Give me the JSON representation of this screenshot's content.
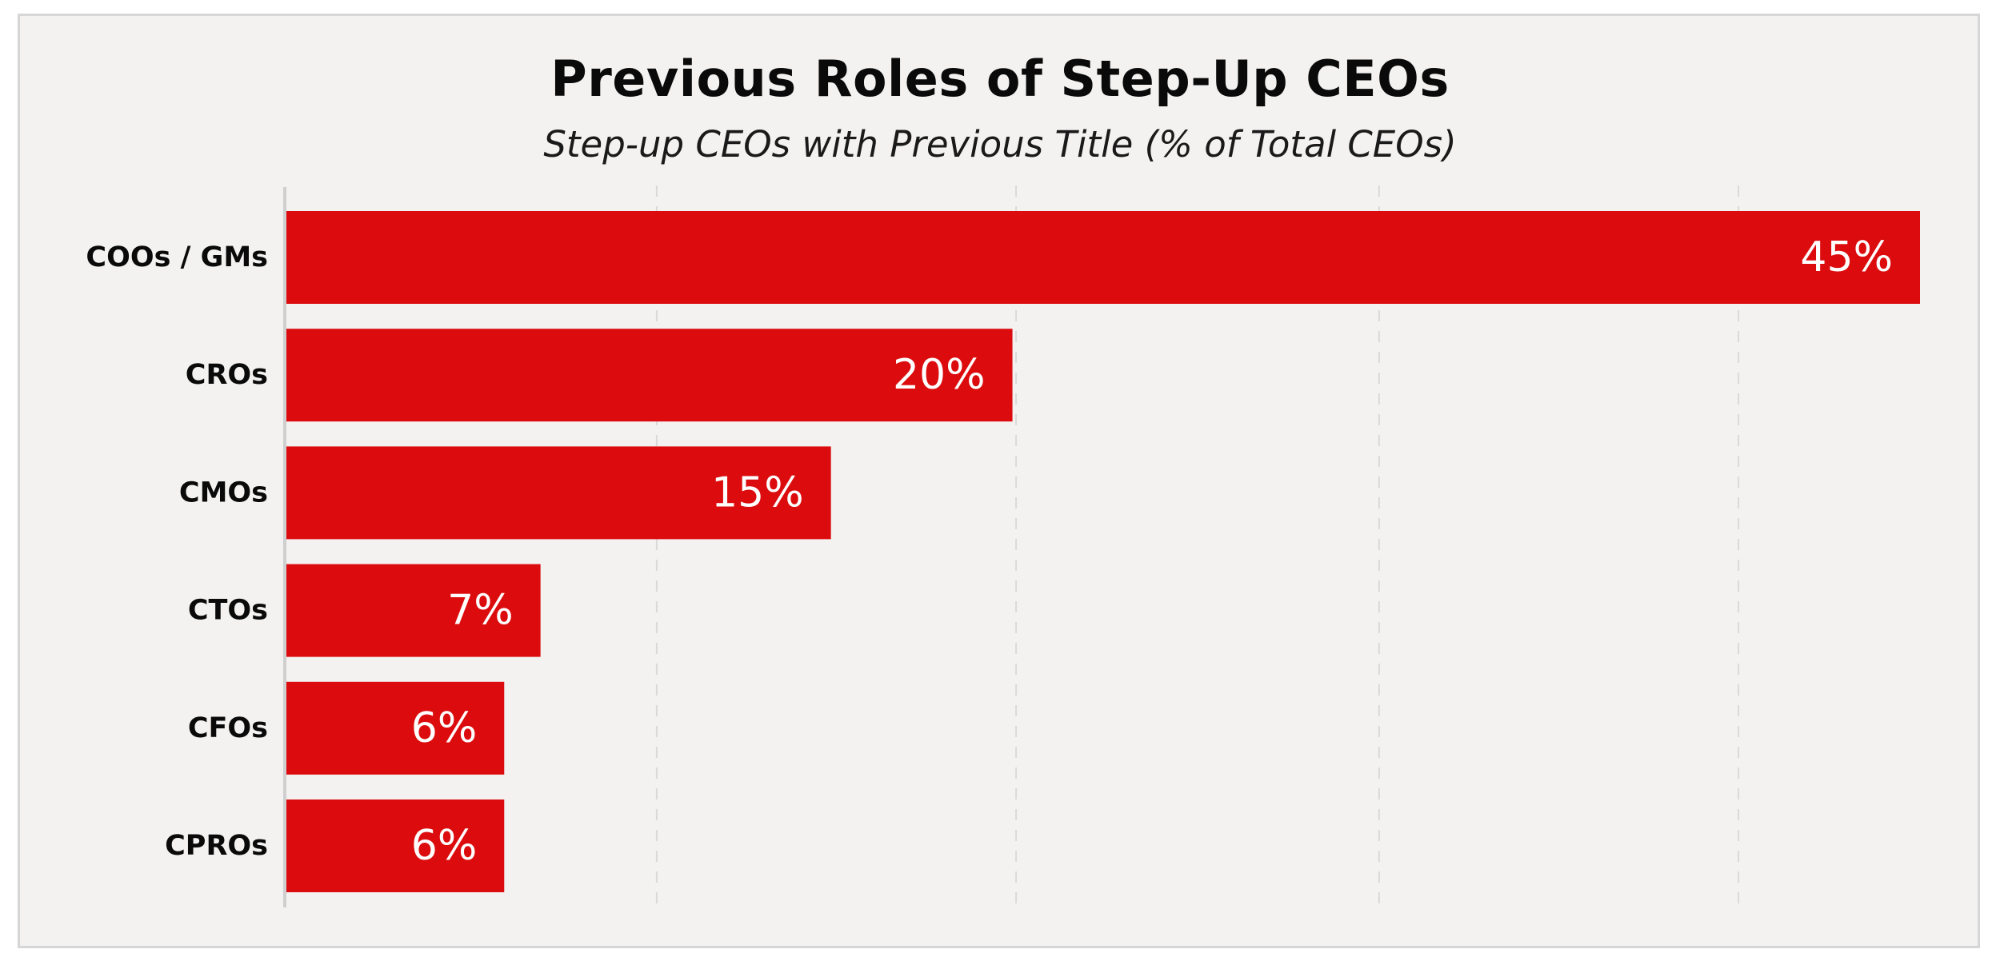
{
  "chart_data": {
    "type": "bar",
    "orientation": "horizontal",
    "title": "Previous Roles of Step-Up CEOs",
    "subtitle": "Step-up CEOs with Previous Title (% of Total CEOs)",
    "categories": [
      "COOs / GMs",
      "CROs",
      "CMOs",
      "CTOs",
      "CFOs",
      "CPROs"
    ],
    "values": [
      45,
      20,
      15,
      7,
      6,
      6
    ],
    "value_labels": [
      "45%",
      "20%",
      "15%",
      "7%",
      "6%",
      "6%"
    ],
    "unit": "%",
    "xlim": [
      0,
      45
    ],
    "gridlines_at": [
      10.2,
      20.1,
      30.1,
      40.0
    ],
    "grid": true,
    "grid_style": "dashed vertical",
    "bar_color": "#dc0c0e",
    "legend": "none"
  }
}
